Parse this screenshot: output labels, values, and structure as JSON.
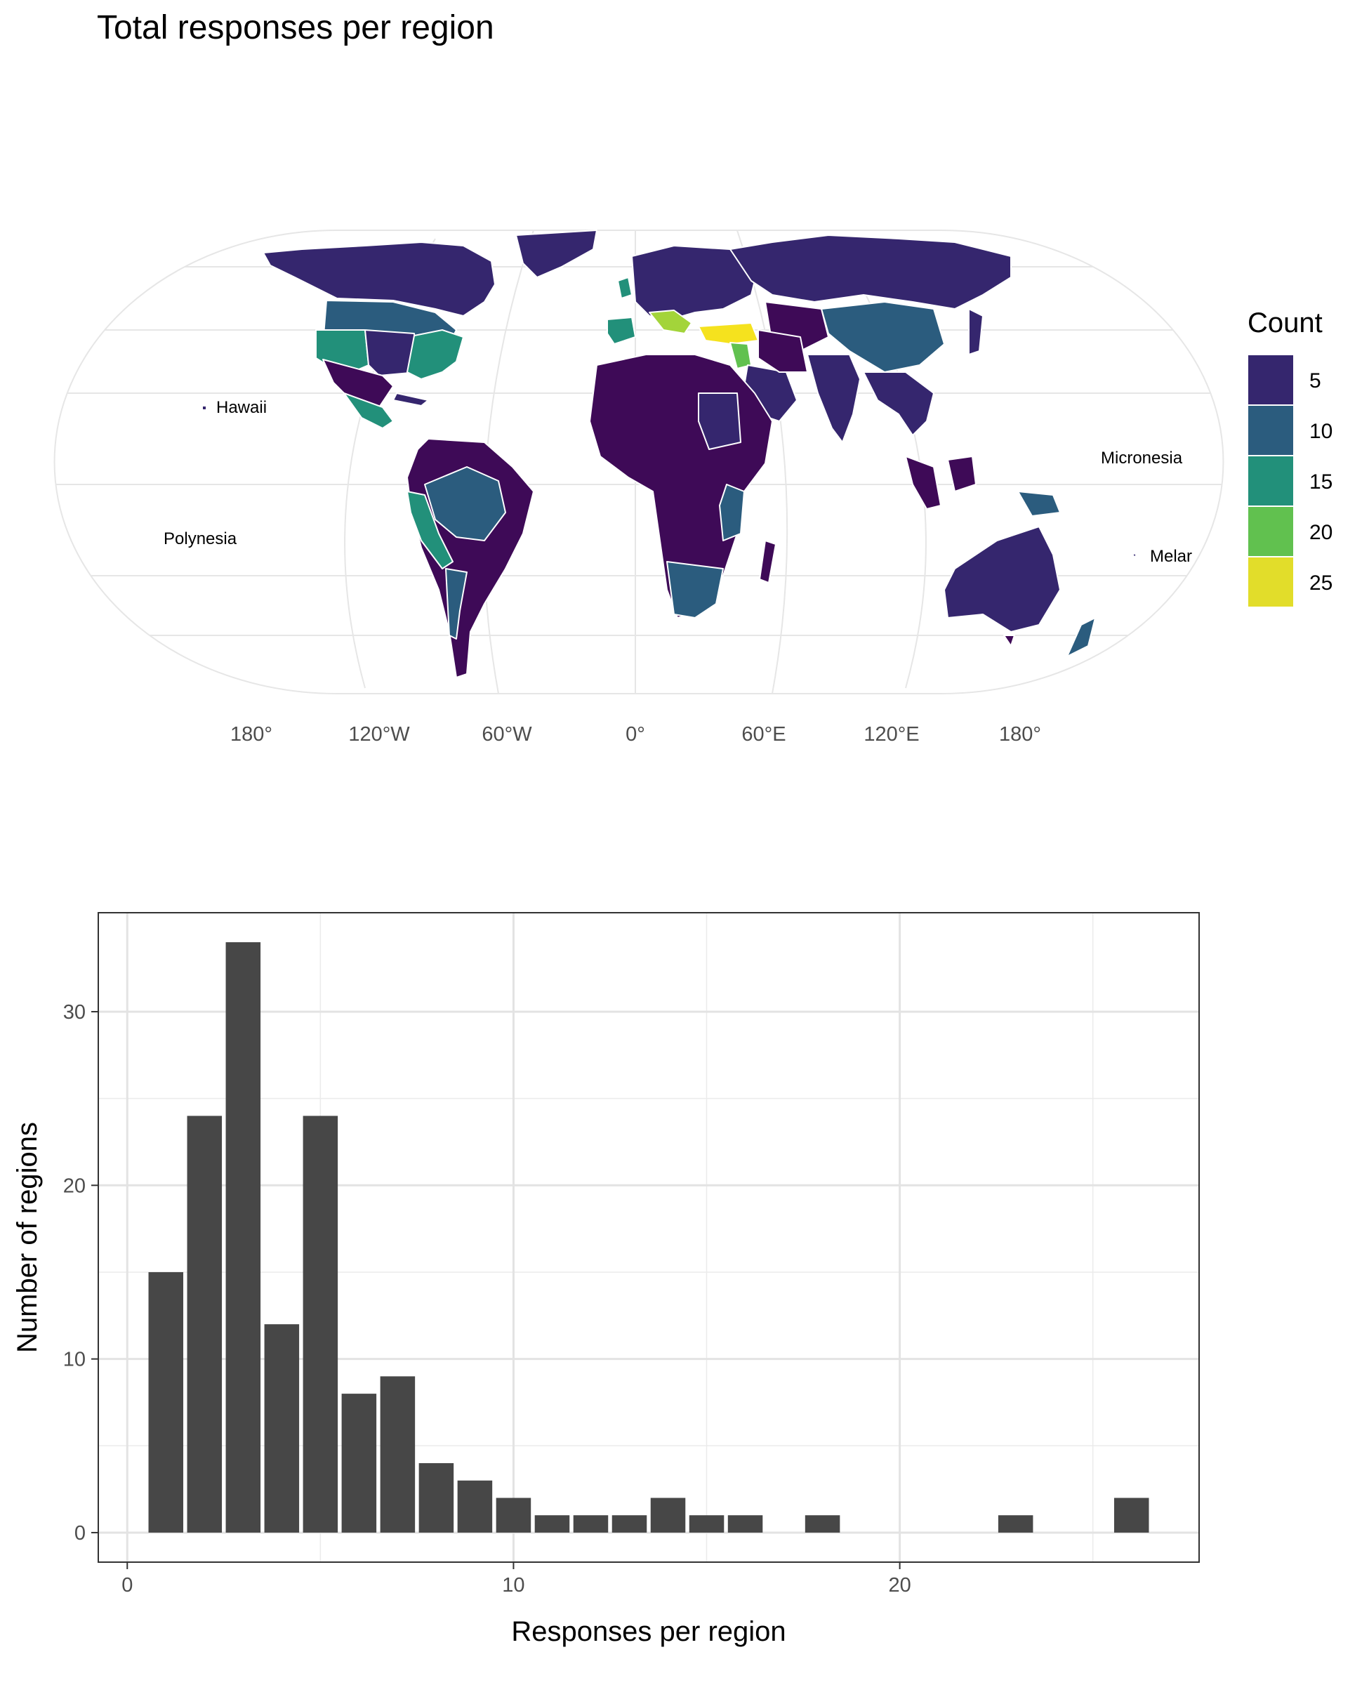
{
  "map": {
    "title": "Total responses per region",
    "lon_labels": [
      "180°",
      "120°W",
      "60°W",
      "0°",
      "60°E",
      "120°E",
      "180°"
    ],
    "region_labels": {
      "hawaii": "Hawaii",
      "polynesia": "Polynesia",
      "micronesia": "Micronesia",
      "melanesia": "Melar"
    },
    "legend": {
      "title": "Count",
      "entries": [
        {
          "label": "5",
          "color": "#35266e"
        },
        {
          "label": "10",
          "color": "#2b5c7e"
        },
        {
          "label": "15",
          "color": "#22907a"
        },
        {
          "label": "20",
          "color": "#61c14f"
        },
        {
          "label": "25",
          "color": "#e2dd2a"
        }
      ]
    },
    "colors": {
      "very_low": "#3e0a57",
      "low": "#35266e",
      "mid_low": "#2b5c7e",
      "mid": "#22907a",
      "high": "#61c14f",
      "higher": "#a3d43a",
      "max": "#f5e21e"
    }
  },
  "chart_data": {
    "type": "bar",
    "xlabel": "Responses per region",
    "ylabel": "Number of regions",
    "xlim": [
      -0.75,
      27.75
    ],
    "ylim": [
      -1.7,
      35.7
    ],
    "x_ticks": [
      0,
      10,
      20
    ],
    "y_ticks": [
      0,
      10,
      20,
      30
    ],
    "bar_color": "#474747",
    "grid": true,
    "x": [
      1,
      2,
      3,
      4,
      5,
      6,
      7,
      8,
      9,
      10,
      11,
      12,
      13,
      14,
      15,
      16,
      18,
      23,
      26
    ],
    "values": [
      15,
      24,
      34,
      12,
      24,
      8,
      9,
      4,
      3,
      2,
      1,
      1,
      1,
      2,
      1,
      1,
      1,
      1,
      2
    ]
  }
}
